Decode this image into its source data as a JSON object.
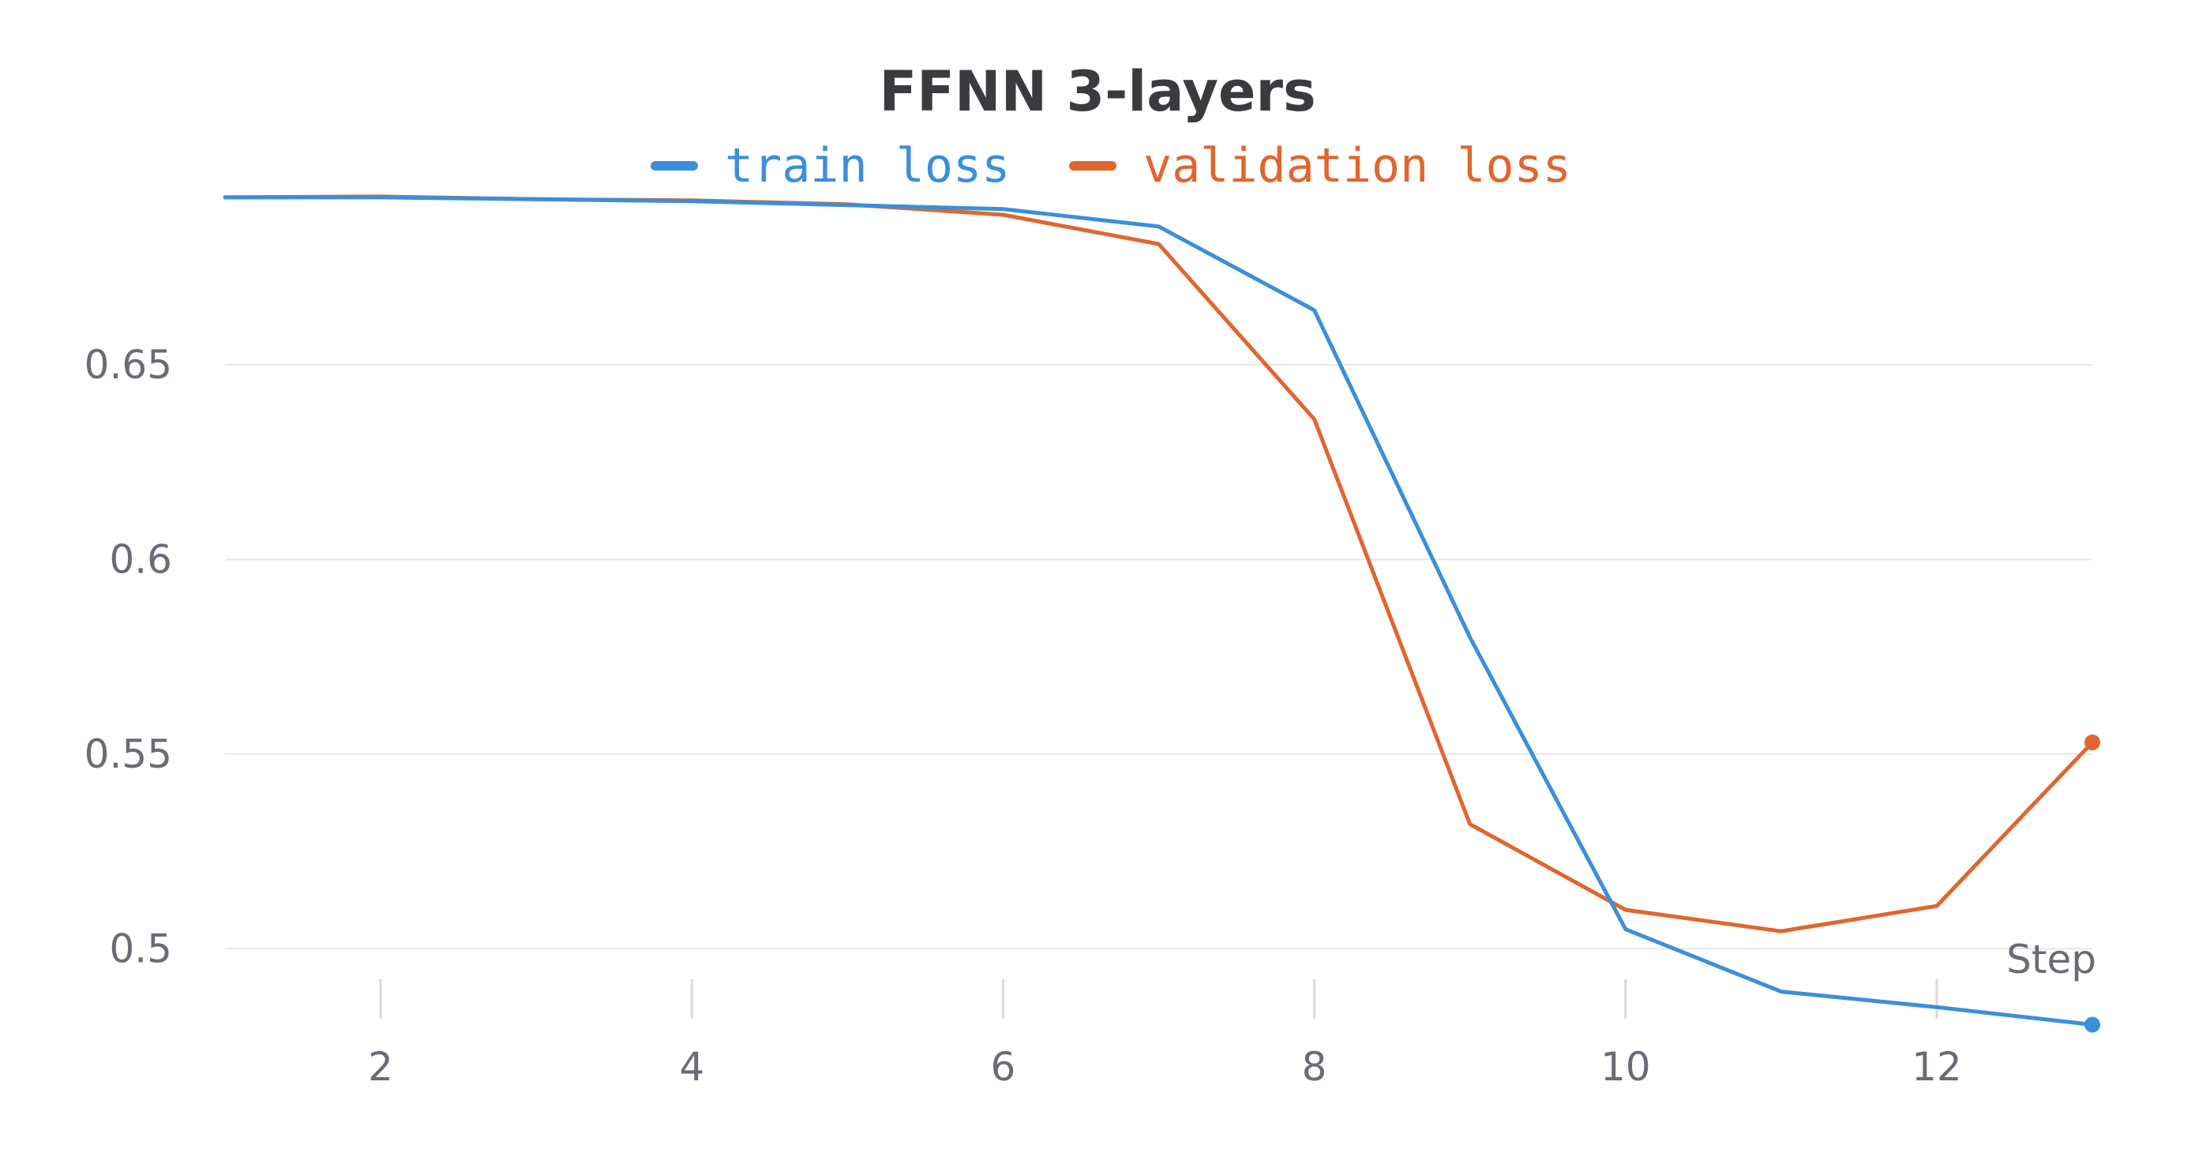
{
  "chart_data": {
    "type": "line",
    "title": "FFNN 3-layers",
    "xlabel": "Step",
    "ylabel": "",
    "x": [
      1,
      2,
      3,
      4,
      5,
      6,
      7,
      8,
      9,
      10,
      11,
      12,
      13
    ],
    "x_ticks": [
      2,
      4,
      6,
      8,
      10,
      12
    ],
    "y_ticks": [
      0.5,
      0.55,
      0.6,
      0.65
    ],
    "y_tick_labels": [
      "0.5",
      "0.55",
      "0.6",
      "0.65"
    ],
    "xlim": [
      1,
      13
    ],
    "ylim": [
      0.48,
      0.695
    ],
    "grid": "horizontal",
    "legend_position": "top-center",
    "series": [
      {
        "name": "train loss",
        "color": "#3a8fdb",
        "values": [
          0.693,
          0.693,
          0.6925,
          0.692,
          0.691,
          0.69,
          0.6855,
          0.664,
          0.58,
          0.505,
          0.489,
          0.485,
          0.4805
        ]
      },
      {
        "name": "validation loss",
        "color": "#e0662e",
        "values": [
          0.693,
          0.6932,
          0.6925,
          0.6922,
          0.6912,
          0.6885,
          0.681,
          0.636,
          0.532,
          0.51,
          0.5045,
          0.511,
          0.553
        ]
      }
    ]
  }
}
